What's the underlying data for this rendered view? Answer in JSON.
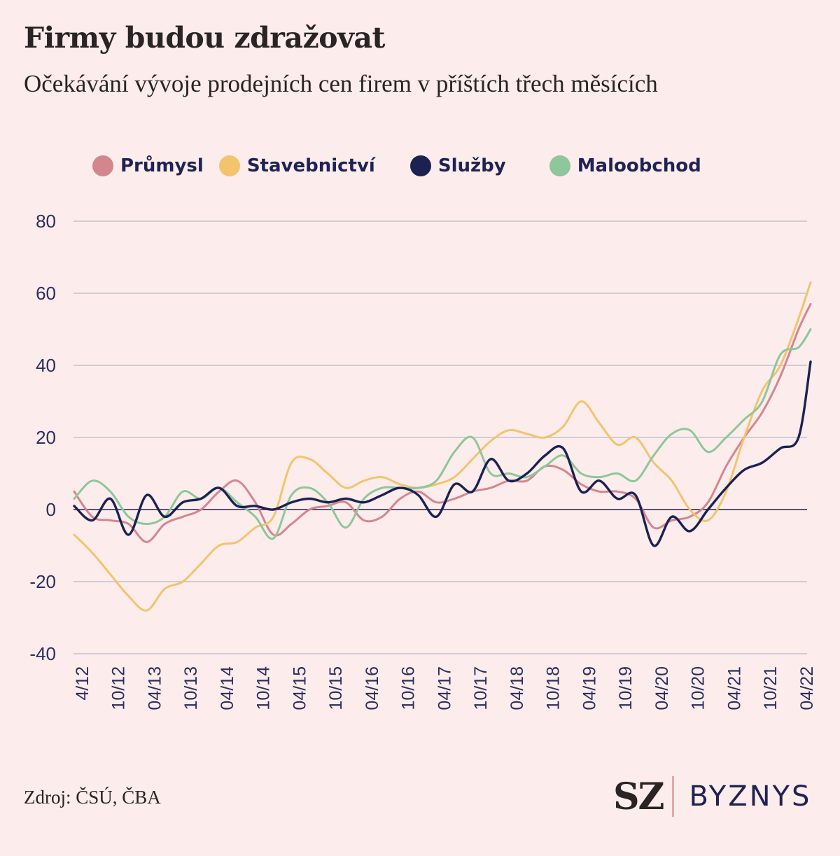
{
  "title": "Firmy budou zdražovat",
  "subtitle": "Očekávání vývoje prodejních cen firem v příštích třech měsících",
  "source": "Zdroj: ČSÚ, ČBA",
  "brand": {
    "sz": "SZ",
    "byznys": "BYZNYS"
  },
  "chart_data": {
    "type": "line",
    "title": "Firmy budou zdražovat",
    "subtitle": "Očekávání vývoje prodejních cen firem v příštích třech měsících",
    "xlabel": "",
    "ylabel": "",
    "ylim": [
      -40,
      80
    ],
    "yticks": [
      80,
      60,
      40,
      20,
      0,
      -20,
      -40
    ],
    "x_ticks": [
      "4/12",
      "10/12",
      "04/13",
      "10/13",
      "04/14",
      "10/14",
      "04/15",
      "10/15",
      "04/16",
      "10/16",
      "04/17",
      "10/17",
      "04/18",
      "10/18",
      "04/19",
      "10/19",
      "04/20",
      "10/20",
      "04/21",
      "10/21",
      "04/22"
    ],
    "x_start": "2012-04",
    "x_end": "2022-06",
    "grid": true,
    "legend_position": "top",
    "series": [
      {
        "name": "Průmysl",
        "color": "#d4868f",
        "values": [
          [
            "2012-04",
            5
          ],
          [
            "2012-07",
            -2
          ],
          [
            "2012-10",
            -3
          ],
          [
            "2013-01",
            -4
          ],
          [
            "2013-04",
            -9
          ],
          [
            "2013-07",
            -4
          ],
          [
            "2013-10",
            -2
          ],
          [
            "2014-01",
            0
          ],
          [
            "2014-04",
            5
          ],
          [
            "2014-07",
            8
          ],
          [
            "2014-10",
            2
          ],
          [
            "2015-01",
            -7
          ],
          [
            "2015-04",
            -4
          ],
          [
            "2015-07",
            0
          ],
          [
            "2015-10",
            1
          ],
          [
            "2016-01",
            2
          ],
          [
            "2016-04",
            -3
          ],
          [
            "2016-07",
            -2
          ],
          [
            "2016-10",
            3
          ],
          [
            "2017-01",
            5
          ],
          [
            "2017-04",
            2
          ],
          [
            "2017-07",
            3
          ],
          [
            "2017-10",
            5
          ],
          [
            "2018-01",
            6
          ],
          [
            "2018-04",
            8
          ],
          [
            "2018-07",
            8
          ],
          [
            "2018-10",
            12
          ],
          [
            "2019-01",
            11
          ],
          [
            "2019-04",
            7
          ],
          [
            "2019-07",
            5
          ],
          [
            "2019-10",
            5
          ],
          [
            "2020-01",
            3
          ],
          [
            "2020-04",
            -5
          ],
          [
            "2020-07",
            -3
          ],
          [
            "2020-10",
            -2
          ],
          [
            "2021-01",
            2
          ],
          [
            "2021-04",
            12
          ],
          [
            "2021-07",
            20
          ],
          [
            "2021-10",
            27
          ],
          [
            "2022-01",
            37
          ],
          [
            "2022-04",
            50
          ],
          [
            "2022-06",
            57
          ]
        ]
      },
      {
        "name": "Stavebnictví",
        "color": "#f2c46e",
        "values": [
          [
            "2012-04",
            -7
          ],
          [
            "2012-07",
            -12
          ],
          [
            "2012-10",
            -18
          ],
          [
            "2013-01",
            -24
          ],
          [
            "2013-04",
            -28
          ],
          [
            "2013-07",
            -22
          ],
          [
            "2013-10",
            -20
          ],
          [
            "2014-01",
            -15
          ],
          [
            "2014-04",
            -10
          ],
          [
            "2014-07",
            -9
          ],
          [
            "2014-10",
            -5
          ],
          [
            "2015-01",
            -2
          ],
          [
            "2015-04",
            13
          ],
          [
            "2015-07",
            14
          ],
          [
            "2015-10",
            10
          ],
          [
            "2016-01",
            6
          ],
          [
            "2016-04",
            8
          ],
          [
            "2016-07",
            9
          ],
          [
            "2016-10",
            7
          ],
          [
            "2017-01",
            6
          ],
          [
            "2017-04",
            7
          ],
          [
            "2017-07",
            9
          ],
          [
            "2017-10",
            14
          ],
          [
            "2018-01",
            19
          ],
          [
            "2018-04",
            22
          ],
          [
            "2018-07",
            21
          ],
          [
            "2018-10",
            20
          ],
          [
            "2019-01",
            23
          ],
          [
            "2019-04",
            30
          ],
          [
            "2019-07",
            24
          ],
          [
            "2019-10",
            18
          ],
          [
            "2020-01",
            20
          ],
          [
            "2020-04",
            13
          ],
          [
            "2020-07",
            8
          ],
          [
            "2020-10",
            0
          ],
          [
            "2021-01",
            -3
          ],
          [
            "2021-04",
            5
          ],
          [
            "2021-07",
            20
          ],
          [
            "2021-10",
            33
          ],
          [
            "2022-01",
            40
          ],
          [
            "2022-04",
            53
          ],
          [
            "2022-06",
            63
          ]
        ]
      },
      {
        "name": "Služby",
        "color": "#1b2252",
        "values": [
          [
            "2012-04",
            1
          ],
          [
            "2012-07",
            -3
          ],
          [
            "2012-10",
            3
          ],
          [
            "2013-01",
            -7
          ],
          [
            "2013-04",
            4
          ],
          [
            "2013-07",
            -2
          ],
          [
            "2013-10",
            2
          ],
          [
            "2014-01",
            3
          ],
          [
            "2014-04",
            6
          ],
          [
            "2014-07",
            1
          ],
          [
            "2014-10",
            1
          ],
          [
            "2015-01",
            0
          ],
          [
            "2015-04",
            2
          ],
          [
            "2015-07",
            3
          ],
          [
            "2015-10",
            2
          ],
          [
            "2016-01",
            3
          ],
          [
            "2016-04",
            2
          ],
          [
            "2016-07",
            4
          ],
          [
            "2016-10",
            6
          ],
          [
            "2017-01",
            4
          ],
          [
            "2017-04",
            -2
          ],
          [
            "2017-07",
            7
          ],
          [
            "2017-10",
            5
          ],
          [
            "2018-01",
            14
          ],
          [
            "2018-04",
            8
          ],
          [
            "2018-07",
            10
          ],
          [
            "2018-10",
            15
          ],
          [
            "2019-01",
            17
          ],
          [
            "2019-04",
            5
          ],
          [
            "2019-07",
            8
          ],
          [
            "2019-10",
            3
          ],
          [
            "2020-01",
            4
          ],
          [
            "2020-04",
            -10
          ],
          [
            "2020-07",
            -2
          ],
          [
            "2020-10",
            -6
          ],
          [
            "2021-01",
            0
          ],
          [
            "2021-04",
            6
          ],
          [
            "2021-07",
            11
          ],
          [
            "2021-10",
            13
          ],
          [
            "2022-01",
            17
          ],
          [
            "2022-04",
            20
          ],
          [
            "2022-06",
            41
          ]
        ]
      },
      {
        "name": "Maloobchod",
        "color": "#8dc79b",
        "values": [
          [
            "2012-04",
            3
          ],
          [
            "2012-07",
            8
          ],
          [
            "2012-10",
            5
          ],
          [
            "2013-01",
            -2
          ],
          [
            "2013-04",
            -4
          ],
          [
            "2013-07",
            -2
          ],
          [
            "2013-10",
            5
          ],
          [
            "2014-01",
            3
          ],
          [
            "2014-04",
            6
          ],
          [
            "2014-07",
            2
          ],
          [
            "2014-10",
            -2
          ],
          [
            "2015-01",
            -8
          ],
          [
            "2015-04",
            4
          ],
          [
            "2015-07",
            6
          ],
          [
            "2015-10",
            2
          ],
          [
            "2016-01",
            -5
          ],
          [
            "2016-04",
            3
          ],
          [
            "2016-07",
            6
          ],
          [
            "2016-10",
            6
          ],
          [
            "2017-01",
            6
          ],
          [
            "2017-04",
            8
          ],
          [
            "2017-07",
            16
          ],
          [
            "2017-10",
            20
          ],
          [
            "2018-01",
            10
          ],
          [
            "2018-04",
            10
          ],
          [
            "2018-07",
            9
          ],
          [
            "2018-10",
            12
          ],
          [
            "2019-01",
            15
          ],
          [
            "2019-04",
            10
          ],
          [
            "2019-07",
            9
          ],
          [
            "2019-10",
            10
          ],
          [
            "2020-01",
            8
          ],
          [
            "2020-04",
            15
          ],
          [
            "2020-07",
            21
          ],
          [
            "2020-10",
            22
          ],
          [
            "2021-01",
            16
          ],
          [
            "2021-04",
            20
          ],
          [
            "2021-07",
            25
          ],
          [
            "2021-10",
            30
          ],
          [
            "2022-01",
            43
          ],
          [
            "2022-04",
            45
          ],
          [
            "2022-06",
            50
          ]
        ]
      }
    ]
  }
}
